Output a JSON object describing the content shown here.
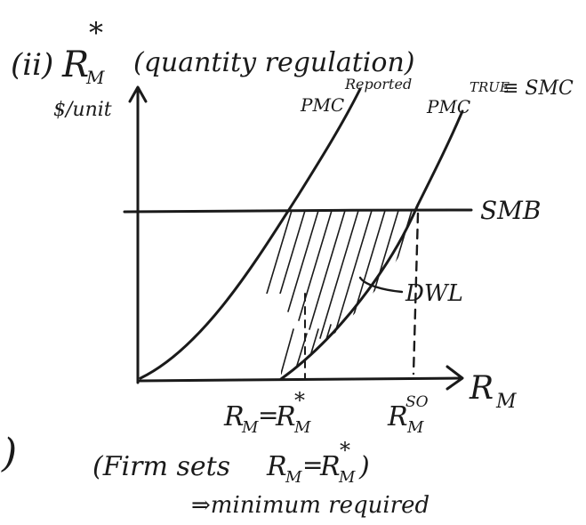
{
  "title": {
    "roman": "(ii)",
    "symbol": "R",
    "symbol_sub": "M",
    "symbol_sup": "*",
    "description": "(quantity regulation)"
  },
  "axes": {
    "y_label": "$/unit",
    "x_label": "R",
    "x_label_sub": "M"
  },
  "curves": {
    "pmc_reported": {
      "base": "PMC",
      "sup": "Reported"
    },
    "pmc_true": {
      "base": "PMC",
      "sup": "TRUE",
      "suffix": "≡ SMC"
    },
    "smb": {
      "label": "SMB"
    }
  },
  "region": {
    "label": "DWL"
  },
  "x_ticks": {
    "regulated": {
      "lhs": "R",
      "lhs_sub": "M",
      "eq": "=",
      "rhs": "R",
      "rhs_sub": "M",
      "rhs_sup": "*"
    },
    "social_optimum": {
      "base": "R",
      "sub": "M",
      "sup": "SO"
    }
  },
  "caption": {
    "open": "(Firm sets ",
    "lhs": "R",
    "lhs_sub": "M",
    "eq": "=",
    "rhs": "R",
    "rhs_sub": "M",
    "rhs_sup": "*",
    "close": ")",
    "note": "⇒minimum required"
  },
  "left_fragment": ")"
}
